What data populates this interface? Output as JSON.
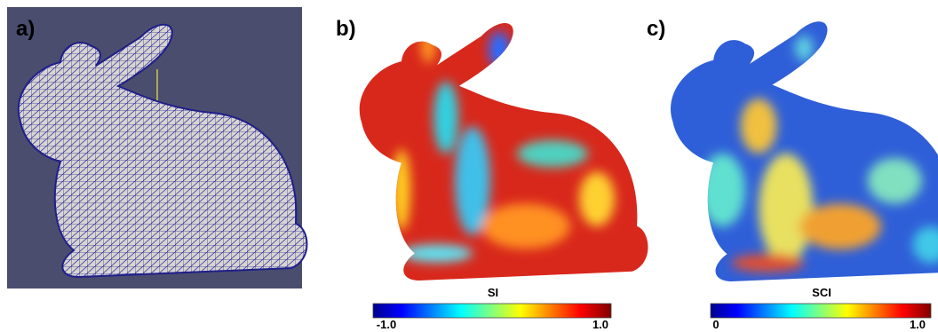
{
  "panels": [
    {
      "label": "a)"
    },
    {
      "label": "b)",
      "colorbar": {
        "title": "SI",
        "min_label": "-1.0",
        "max_label": "1.0"
      }
    },
    {
      "label": "c)",
      "colorbar": {
        "title": "SCI",
        "min_label": "0",
        "max_label": "1.0"
      }
    }
  ]
}
